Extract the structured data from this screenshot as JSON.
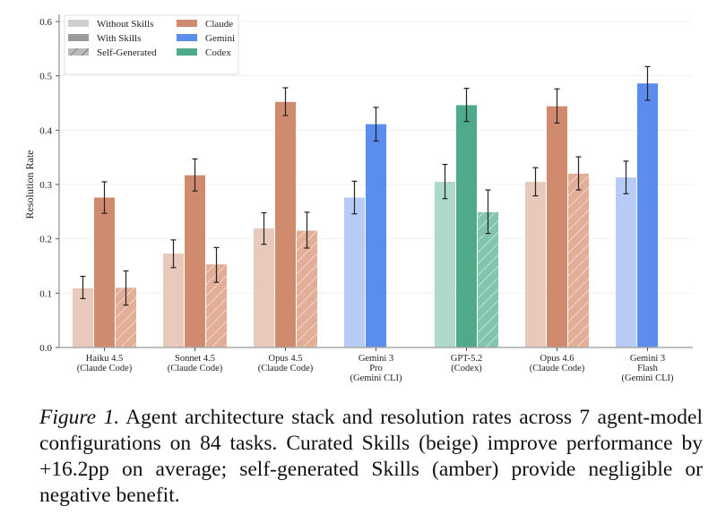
{
  "chart_data": {
    "type": "bar",
    "ylabel": "Resolution Rate",
    "ylim": [
      0,
      0.6
    ],
    "yticks": [
      "0.0",
      "0.1",
      "0.2",
      "0.3",
      "0.4",
      "0.5",
      "0.6"
    ],
    "grid": "horizontal",
    "legend_position": "top-left",
    "legend": {
      "conditions": [
        "Without Skills",
        "With Skills",
        "Self-Generated"
      ],
      "harnesses": [
        {
          "name": "Claude",
          "color": "#d08b6e"
        },
        {
          "name": "Gemini",
          "color": "#5b8def"
        },
        {
          "name": "Codex",
          "color": "#4faa8a"
        }
      ]
    },
    "categories": [
      {
        "lines": [
          "Haiku 4.5",
          "(Claude Code)"
        ],
        "harness": "Claude"
      },
      {
        "lines": [
          "Sonnet 4.5",
          "(Claude Code)"
        ],
        "harness": "Claude"
      },
      {
        "lines": [
          "Opus 4.5",
          "(Claude Code)"
        ],
        "harness": "Claude"
      },
      {
        "lines": [
          "Gemini 3",
          "Pro",
          "(Gemini CLI)"
        ],
        "harness": "Gemini"
      },
      {
        "lines": [
          "GPT-5.2",
          "(Codex)"
        ],
        "harness": "Codex"
      },
      {
        "lines": [
          "Opus 4.6",
          "(Claude Code)"
        ],
        "harness": "Claude"
      },
      {
        "lines": [
          "Gemini 3",
          "Flash",
          "(Gemini CLI)"
        ],
        "harness": "Gemini"
      }
    ],
    "series": [
      {
        "name": "Without Skills",
        "values": [
          0.109,
          0.173,
          0.219,
          0.276,
          0.305,
          0.305,
          0.313
        ],
        "err_low": [
          0.09,
          0.147,
          0.19,
          0.246,
          0.274,
          0.279,
          0.283
        ],
        "err_high": [
          0.131,
          0.198,
          0.248,
          0.306,
          0.337,
          0.331,
          0.343
        ]
      },
      {
        "name": "With Skills",
        "values": [
          0.276,
          0.317,
          0.452,
          0.411,
          0.446,
          0.444,
          0.486
        ],
        "err_low": [
          0.247,
          0.288,
          0.427,
          0.38,
          0.416,
          0.413,
          0.455
        ],
        "err_high": [
          0.305,
          0.347,
          0.478,
          0.442,
          0.477,
          0.476,
          0.517
        ]
      },
      {
        "name": "Self-Generated",
        "values": [
          0.11,
          0.153,
          0.215,
          null,
          0.249,
          0.32,
          null
        ],
        "err_low": [
          0.078,
          0.12,
          0.183,
          null,
          0.21,
          0.29,
          null
        ],
        "err_high": [
          0.141,
          0.184,
          0.249,
          null,
          0.29,
          0.351,
          null
        ]
      }
    ]
  },
  "caption": {
    "label": "Figure 1.",
    "text": " Agent architecture stack and resolution rates across 7 agent-model configurations on 84 tasks. Curated Skills (beige) improve performance by +16.2pp on average; self-generated Skills (amber) provide negligible or negative benefit."
  }
}
